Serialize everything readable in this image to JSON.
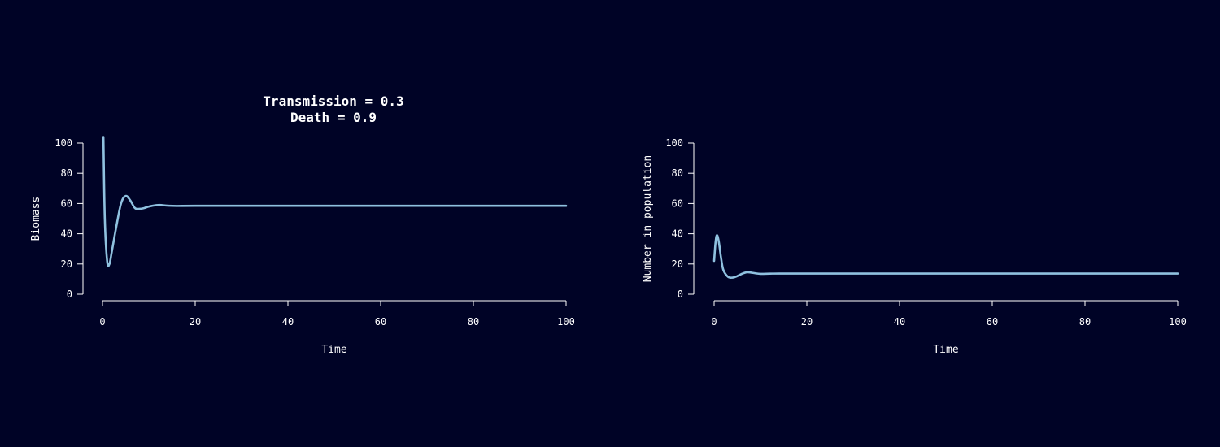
{
  "colors": {
    "background": "#000326",
    "axis": "#ffffff",
    "line": "#8fc1df"
  },
  "title_lines": [
    "Transmission = 0.3",
    "Death = 0.9"
  ],
  "chart_data": [
    {
      "type": "line",
      "xlabel": "Time",
      "ylabel": "Biomass",
      "xlim": [
        0,
        100
      ],
      "ylim": [
        0,
        100
      ],
      "xticks": [
        0,
        20,
        40,
        60,
        80,
        100
      ],
      "yticks": [
        0,
        20,
        40,
        60,
        80,
        100
      ],
      "grid": false,
      "series": [
        {
          "x": [
            0.2,
            0.5,
            1,
            1.5,
            2,
            3,
            4,
            5,
            6,
            7,
            8,
            9,
            10,
            12,
            14,
            16,
            20,
            30,
            50,
            70,
            100
          ],
          "y": [
            104,
            50,
            22,
            20,
            28,
            45,
            60,
            65,
            62,
            57,
            56.5,
            57,
            58,
            59,
            58.6,
            58.4,
            58.5,
            58.5,
            58.5,
            58.5,
            58.5
          ]
        }
      ]
    },
    {
      "type": "line",
      "xlabel": "Time",
      "ylabel": "Number in population",
      "xlim": [
        0,
        100
      ],
      "ylim": [
        0,
        100
      ],
      "xticks": [
        0,
        20,
        40,
        60,
        80,
        100
      ],
      "yticks": [
        0,
        20,
        40,
        60,
        80,
        100
      ],
      "grid": false,
      "series": [
        {
          "x": [
            0,
            0.3,
            0.6,
            1,
            1.5,
            2,
            3,
            4,
            5,
            6,
            7,
            8,
            9,
            10,
            12,
            14,
            20,
            30,
            50,
            100
          ],
          "y": [
            22,
            34,
            39,
            35,
            24,
            16,
            11.5,
            11,
            12,
            13.5,
            14.5,
            14.3,
            13.8,
            13.5,
            13.6,
            13.7,
            13.7,
            13.7,
            13.7,
            13.7
          ]
        }
      ]
    }
  ]
}
